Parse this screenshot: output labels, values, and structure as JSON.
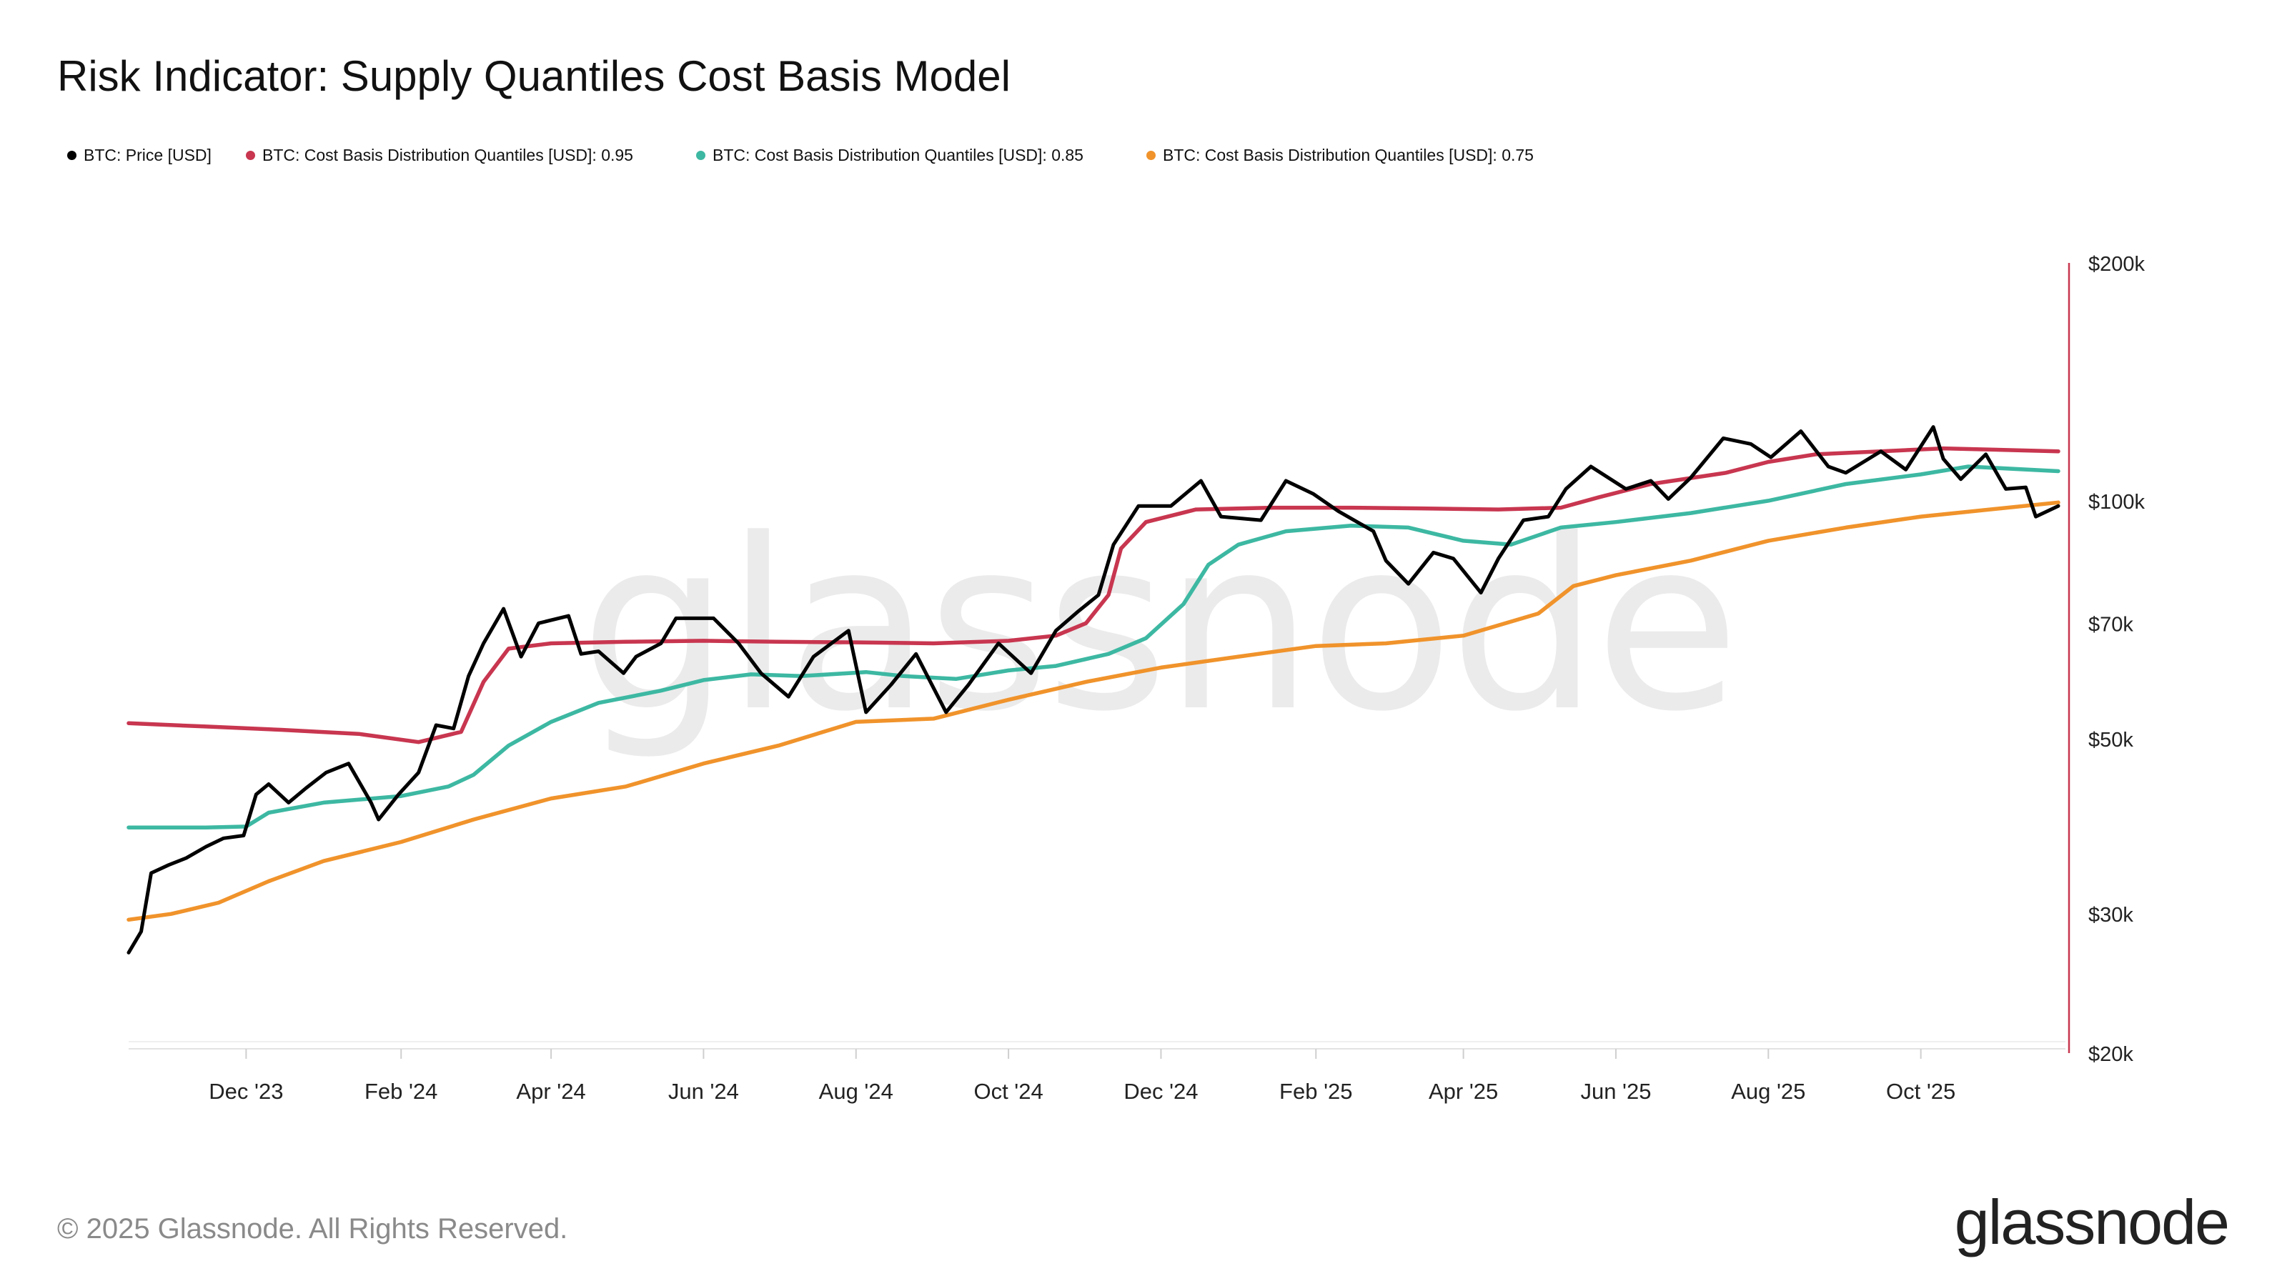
{
  "header": {
    "title": "Risk Indicator: Supply Quantiles Cost Basis Model"
  },
  "legend": [
    {
      "label": "BTC: Price [USD]",
      "color": "#000000"
    },
    {
      "label": "BTC: Cost Basis Distribution Quantiles [USD]: 0.95",
      "color": "#c8364f"
    },
    {
      "label": "BTC: Cost Basis Distribution Quantiles [USD]: 0.85",
      "color": "#3db8a2"
    },
    {
      "label": "BTC: Cost Basis Distribution Quantiles [USD]: 0.75",
      "color": "#f0932b"
    }
  ],
  "watermark": "glassnode",
  "footer": {
    "copyright": "© 2025 Glassnode. All Rights Reserved.",
    "logo_text": "glassnode"
  },
  "chart_data": {
    "type": "line",
    "title": "Risk Indicator: Supply Quantiles Cost Basis Model",
    "xlabel": "",
    "ylabel": "",
    "x_range": [
      "2023-10-15",
      "2025-11-25"
    ],
    "x_ticks": [
      "Dec '23",
      "Feb '24",
      "Apr '24",
      "Jun '24",
      "Aug '24",
      "Oct '24",
      "Dec '24",
      "Feb '25",
      "Apr '25",
      "Jun '25",
      "Aug '25",
      "Oct '25"
    ],
    "x_tick_dates": [
      "2023-12-01",
      "2024-02-01",
      "2024-04-01",
      "2024-06-01",
      "2024-08-01",
      "2024-10-01",
      "2024-12-01",
      "2025-02-01",
      "2025-04-01",
      "2025-06-01",
      "2025-08-01",
      "2025-10-01"
    ],
    "y_scale": "log",
    "ylim": [
      20000,
      200000
    ],
    "y_ticks": [
      {
        "value": 20000,
        "label": "$20k"
      },
      {
        "value": 30000,
        "label": "$30k"
      },
      {
        "value": 50000,
        "label": "$50k"
      },
      {
        "value": 70000,
        "label": "$70k"
      },
      {
        "value": 100000,
        "label": "$100k"
      },
      {
        "value": 200000,
        "label": "$200k"
      }
    ],
    "y_axis_side": "right",
    "grid": false,
    "legend_position": "top-left",
    "series": [
      {
        "name": "BTC: Price [USD]",
        "color": "#000000",
        "points": [
          [
            "2023-10-15",
            26800
          ],
          [
            "2023-10-20",
            28500
          ],
          [
            "2023-10-24",
            33800
          ],
          [
            "2023-10-31",
            34600
          ],
          [
            "2023-11-07",
            35300
          ],
          [
            "2023-11-15",
            36500
          ],
          [
            "2023-11-22",
            37400
          ],
          [
            "2023-11-30",
            37700
          ],
          [
            "2023-12-05",
            42500
          ],
          [
            "2023-12-10",
            43800
          ],
          [
            "2023-12-18",
            41500
          ],
          [
            "2023-12-25",
            43300
          ],
          [
            "2024-01-02",
            45300
          ],
          [
            "2024-01-11",
            46500
          ],
          [
            "2024-01-20",
            41500
          ],
          [
            "2024-01-23",
            39500
          ],
          [
            "2024-01-31",
            42500
          ],
          [
            "2024-02-08",
            45300
          ],
          [
            "2024-02-15",
            52000
          ],
          [
            "2024-02-22",
            51500
          ],
          [
            "2024-02-28",
            60000
          ],
          [
            "2024-03-05",
            66000
          ],
          [
            "2024-03-13",
            73000
          ],
          [
            "2024-03-20",
            63500
          ],
          [
            "2024-03-27",
            70000
          ],
          [
            "2024-04-08",
            71500
          ],
          [
            "2024-04-13",
            64000
          ],
          [
            "2024-04-20",
            64500
          ],
          [
            "2024-04-30",
            60500
          ],
          [
            "2024-05-05",
            63500
          ],
          [
            "2024-05-15",
            66000
          ],
          [
            "2024-05-21",
            71000
          ],
          [
            "2024-06-05",
            71000
          ],
          [
            "2024-06-15",
            66000
          ],
          [
            "2024-06-24",
            60500
          ],
          [
            "2024-07-05",
            56500
          ],
          [
            "2024-07-15",
            63500
          ],
          [
            "2024-07-29",
            68500
          ],
          [
            "2024-08-05",
            54000
          ],
          [
            "2024-08-15",
            58500
          ],
          [
            "2024-08-25",
            64000
          ],
          [
            "2024-09-06",
            54000
          ],
          [
            "2024-09-15",
            58500
          ],
          [
            "2024-09-27",
            66000
          ],
          [
            "2024-10-10",
            60500
          ],
          [
            "2024-10-20",
            68500
          ],
          [
            "2024-10-29",
            72500
          ],
          [
            "2024-11-06",
            76000
          ],
          [
            "2024-11-12",
            88000
          ],
          [
            "2024-11-22",
            98500
          ],
          [
            "2024-12-05",
            98500
          ],
          [
            "2024-12-17",
            106000
          ],
          [
            "2024-12-25",
            95500
          ],
          [
            "2025-01-10",
            94500
          ],
          [
            "2025-01-20",
            106000
          ],
          [
            "2025-01-31",
            102000
          ],
          [
            "2025-02-10",
            97000
          ],
          [
            "2025-02-24",
            91500
          ],
          [
            "2025-03-01",
            84000
          ],
          [
            "2025-03-10",
            78500
          ],
          [
            "2025-03-20",
            86000
          ],
          [
            "2025-03-28",
            84500
          ],
          [
            "2025-04-08",
            76500
          ],
          [
            "2025-04-15",
            84500
          ],
          [
            "2025-04-25",
            94500
          ],
          [
            "2025-05-05",
            95500
          ],
          [
            "2025-05-12",
            103500
          ],
          [
            "2025-05-22",
            110500
          ],
          [
            "2025-06-05",
            103500
          ],
          [
            "2025-06-15",
            106000
          ],
          [
            "2025-06-22",
            100500
          ],
          [
            "2025-07-01",
            107000
          ],
          [
            "2025-07-14",
            120000
          ],
          [
            "2025-07-25",
            118000
          ],
          [
            "2025-08-02",
            113500
          ],
          [
            "2025-08-14",
            122500
          ],
          [
            "2025-08-25",
            110500
          ],
          [
            "2025-09-01",
            108500
          ],
          [
            "2025-09-15",
            115500
          ],
          [
            "2025-09-25",
            109500
          ],
          [
            "2025-10-06",
            124000
          ],
          [
            "2025-10-10",
            113000
          ],
          [
            "2025-10-17",
            106500
          ],
          [
            "2025-10-27",
            114500
          ],
          [
            "2025-11-04",
            103500
          ],
          [
            "2025-11-12",
            104000
          ],
          [
            "2025-11-16",
            95500
          ],
          [
            "2025-11-25",
            98500
          ]
        ]
      },
      {
        "name": "BTC: Cost Basis Distribution Quantiles [USD]: 0.95",
        "color": "#c8364f",
        "points": [
          [
            "2023-10-15",
            52300
          ],
          [
            "2023-11-15",
            51800
          ],
          [
            "2023-12-15",
            51300
          ],
          [
            "2024-01-15",
            50700
          ],
          [
            "2024-02-08",
            49500
          ],
          [
            "2024-02-25",
            51000
          ],
          [
            "2024-03-05",
            59000
          ],
          [
            "2024-03-15",
            65000
          ],
          [
            "2024-04-01",
            66000
          ],
          [
            "2024-05-01",
            66300
          ],
          [
            "2024-06-01",
            66500
          ],
          [
            "2024-07-01",
            66300
          ],
          [
            "2024-08-01",
            66200
          ],
          [
            "2024-09-01",
            66000
          ],
          [
            "2024-10-01",
            66500
          ],
          [
            "2024-10-20",
            67500
          ],
          [
            "2024-11-01",
            70000
          ],
          [
            "2024-11-10",
            76000
          ],
          [
            "2024-11-15",
            87000
          ],
          [
            "2024-11-25",
            94000
          ],
          [
            "2024-12-15",
            97500
          ],
          [
            "2025-01-15",
            98000
          ],
          [
            "2025-02-15",
            98000
          ],
          [
            "2025-03-15",
            97800
          ],
          [
            "2025-04-15",
            97500
          ],
          [
            "2025-05-10",
            98000
          ],
          [
            "2025-05-25",
            101000
          ],
          [
            "2025-06-15",
            105000
          ],
          [
            "2025-07-15",
            108500
          ],
          [
            "2025-08-01",
            112000
          ],
          [
            "2025-08-20",
            114500
          ],
          [
            "2025-09-15",
            115500
          ],
          [
            "2025-10-10",
            116500
          ],
          [
            "2025-11-25",
            115500
          ]
        ]
      },
      {
        "name": "BTC: Cost Basis Distribution Quantiles [USD]: 0.85",
        "color": "#3db8a2",
        "points": [
          [
            "2023-10-15",
            38600
          ],
          [
            "2023-11-15",
            38600
          ],
          [
            "2023-12-01",
            38700
          ],
          [
            "2023-12-10",
            40300
          ],
          [
            "2024-01-01",
            41500
          ],
          [
            "2024-02-01",
            42300
          ],
          [
            "2024-02-20",
            43500
          ],
          [
            "2024-03-01",
            45000
          ],
          [
            "2024-03-15",
            49000
          ],
          [
            "2024-04-01",
            52500
          ],
          [
            "2024-04-20",
            55500
          ],
          [
            "2024-05-15",
            57500
          ],
          [
            "2024-06-01",
            59300
          ],
          [
            "2024-06-20",
            60300
          ],
          [
            "2024-07-10",
            60000
          ],
          [
            "2024-08-05",
            60700
          ],
          [
            "2024-08-20",
            60000
          ],
          [
            "2024-09-10",
            59500
          ],
          [
            "2024-10-01",
            61000
          ],
          [
            "2024-10-20",
            61800
          ],
          [
            "2024-11-10",
            64000
          ],
          [
            "2024-11-25",
            67000
          ],
          [
            "2024-12-10",
            74000
          ],
          [
            "2024-12-20",
            83000
          ],
          [
            "2025-01-01",
            88000
          ],
          [
            "2025-01-20",
            91500
          ],
          [
            "2025-02-15",
            93000
          ],
          [
            "2025-03-10",
            92500
          ],
          [
            "2025-04-01",
            89000
          ],
          [
            "2025-04-20",
            88000
          ],
          [
            "2025-05-10",
            92500
          ],
          [
            "2025-06-01",
            94000
          ],
          [
            "2025-07-01",
            96500
          ],
          [
            "2025-08-01",
            100000
          ],
          [
            "2025-09-01",
            105000
          ],
          [
            "2025-10-01",
            108000
          ],
          [
            "2025-10-20",
            110500
          ],
          [
            "2025-11-25",
            109000
          ]
        ]
      },
      {
        "name": "BTC: Cost Basis Distribution Quantiles [USD]: 0.75",
        "color": "#f0932b",
        "points": [
          [
            "2023-10-15",
            29500
          ],
          [
            "2023-11-01",
            30000
          ],
          [
            "2023-11-20",
            31000
          ],
          [
            "2023-12-10",
            33000
          ],
          [
            "2024-01-01",
            35000
          ],
          [
            "2024-02-01",
            37000
          ],
          [
            "2024-03-01",
            39500
          ],
          [
            "2024-04-01",
            42000
          ],
          [
            "2024-05-01",
            43500
          ],
          [
            "2024-06-01",
            46500
          ],
          [
            "2024-07-01",
            49000
          ],
          [
            "2024-08-01",
            52500
          ],
          [
            "2024-09-01",
            53000
          ],
          [
            "2024-10-01",
            56000
          ],
          [
            "2024-11-01",
            59000
          ],
          [
            "2024-12-01",
            61500
          ],
          [
            "2025-01-01",
            63500
          ],
          [
            "2025-02-01",
            65500
          ],
          [
            "2025-03-01",
            66000
          ],
          [
            "2025-04-01",
            67500
          ],
          [
            "2025-05-01",
            72000
          ],
          [
            "2025-05-15",
            78000
          ],
          [
            "2025-06-01",
            80500
          ],
          [
            "2025-07-01",
            84000
          ],
          [
            "2025-08-01",
            89000
          ],
          [
            "2025-09-01",
            92500
          ],
          [
            "2025-10-01",
            95500
          ],
          [
            "2025-11-25",
            99500
          ]
        ]
      }
    ]
  }
}
